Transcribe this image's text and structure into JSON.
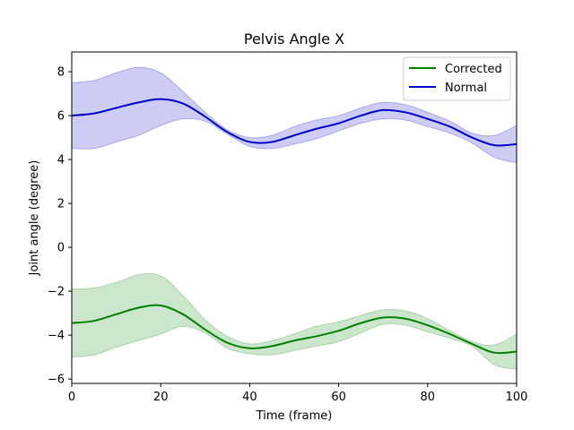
{
  "chart_data": {
    "type": "line",
    "title": "Pelvis Angle X",
    "xlabel": "Time (frame)",
    "ylabel": "Joint angle (degree)",
    "xlim": [
      0,
      100
    ],
    "ylim": [
      -6.2,
      8.9
    ],
    "xticks": [
      0,
      20,
      40,
      60,
      80,
      100
    ],
    "yticks": [
      -6,
      -4,
      -2,
      0,
      2,
      4,
      6,
      8
    ],
    "grid": false,
    "legend_position": "top-right",
    "x": [
      0,
      5,
      10,
      15,
      20,
      25,
      30,
      35,
      40,
      45,
      50,
      55,
      60,
      65,
      70,
      75,
      80,
      85,
      90,
      95,
      100
    ],
    "series": [
      {
        "name": "Corrected",
        "color": "#008000",
        "mean": [
          -3.45,
          -3.35,
          -3.05,
          -2.75,
          -2.65,
          -3.05,
          -3.75,
          -4.35,
          -4.6,
          -4.5,
          -4.25,
          -4.05,
          -3.8,
          -3.45,
          -3.2,
          -3.25,
          -3.55,
          -3.95,
          -4.4,
          -4.8,
          -4.75
        ],
        "upper": [
          -1.9,
          -1.85,
          -1.6,
          -1.25,
          -1.3,
          -2.2,
          -3.3,
          -4.05,
          -4.4,
          -4.25,
          -3.95,
          -3.6,
          -3.4,
          -3.1,
          -2.85,
          -2.9,
          -3.25,
          -3.8,
          -4.3,
          -4.45,
          -3.95
        ],
        "lower": [
          -5.0,
          -4.9,
          -4.55,
          -4.25,
          -3.95,
          -3.6,
          -3.9,
          -4.6,
          -4.85,
          -4.9,
          -4.7,
          -4.5,
          -4.3,
          -3.9,
          -3.5,
          -3.55,
          -3.85,
          -4.15,
          -4.5,
          -5.35,
          -5.55
        ]
      },
      {
        "name": "Normal",
        "color": "#0000cc",
        "mean": [
          6.0,
          6.1,
          6.35,
          6.6,
          6.75,
          6.55,
          5.95,
          5.25,
          4.8,
          4.8,
          5.1,
          5.4,
          5.65,
          6.0,
          6.25,
          6.15,
          5.85,
          5.5,
          5.0,
          4.65,
          4.7
        ],
        "upper": [
          7.5,
          7.6,
          7.95,
          8.2,
          7.95,
          7.1,
          6.15,
          5.35,
          5.0,
          5.1,
          5.5,
          5.8,
          6.0,
          6.35,
          6.6,
          6.5,
          6.15,
          5.75,
          5.2,
          5.1,
          5.55
        ],
        "lower": [
          4.5,
          4.5,
          4.8,
          5.1,
          5.55,
          5.85,
          5.75,
          5.15,
          4.6,
          4.5,
          4.7,
          4.95,
          5.3,
          5.65,
          5.85,
          5.8,
          5.5,
          5.2,
          4.75,
          4.1,
          3.85
        ]
      }
    ]
  }
}
